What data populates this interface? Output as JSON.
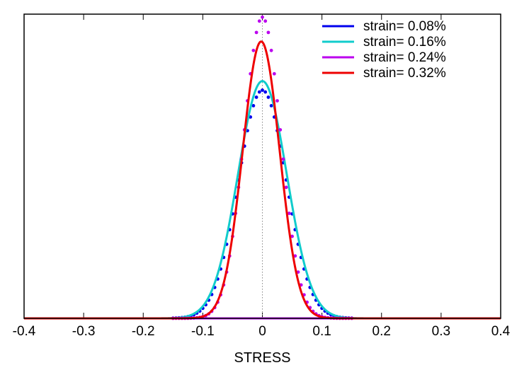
{
  "chart_data": {
    "type": "line",
    "title": "",
    "xlabel": "STRESS",
    "ylabel": "",
    "xlim": [
      -0.4,
      0.4
    ],
    "ylim": [
      0,
      1.0
    ],
    "grid": false,
    "legend_position": "top-right",
    "x_ticks": [
      "-0.4",
      "-0.3",
      "-0.2",
      "-0.1",
      "0",
      "0.1",
      "0.2",
      "0.3",
      "0.4"
    ],
    "reference_line": {
      "x": 0,
      "style": "dotted"
    },
    "series": [
      {
        "name": "strain= 0.08%",
        "color": "#0000ee",
        "peak": 0.75,
        "center": 0.0,
        "sigma": 0.04,
        "style": "dots"
      },
      {
        "name": "strain= 0.16%",
        "color": "#11cccc",
        "peak": 0.78,
        "center": 0.0,
        "sigma": 0.041,
        "style": "line"
      },
      {
        "name": "strain= 0.24%",
        "color": "#bb00ee",
        "peak": 0.99,
        "center": 0.0,
        "sigma": 0.031,
        "style": "dots"
      },
      {
        "name": "strain= 0.32%",
        "color": "#ee0000",
        "peak": 0.91,
        "center": -0.002,
        "sigma": 0.031,
        "style": "line"
      }
    ]
  }
}
